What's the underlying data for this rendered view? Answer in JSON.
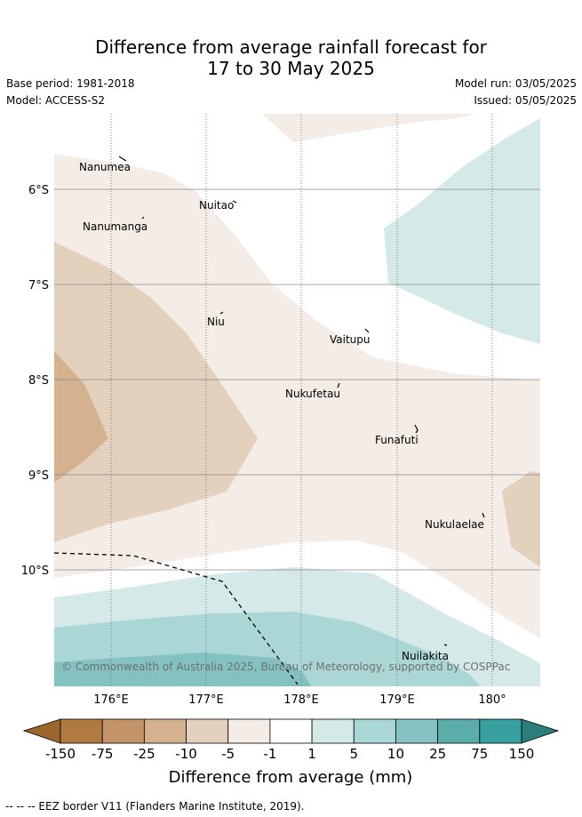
{
  "header": {
    "title_line1": "Difference from average rainfall forecast for",
    "title_line2": "17 to 30 May 2025",
    "base_period": "Base period: 1981-2018",
    "model": "Model: ACCESS-S2",
    "model_run": "Model run: 03/05/2025",
    "issued": "Issued: 05/05/2025"
  },
  "map": {
    "lat_labels": [
      "6°S",
      "7°S",
      "8°S",
      "9°S",
      "10°S"
    ],
    "lon_labels": [
      "176°E",
      "177°E",
      "178°E",
      "179°E",
      "180°"
    ],
    "places": [
      "Nanumea",
      "Nuitao",
      "Nanumanga",
      "Niu",
      "Vaitupu",
      "Nukufetau",
      "Funafuti",
      "Nukulaelae",
      "Nuilakita"
    ],
    "copyright": "© Commonwealth of Australia 2025, Bureau of Meteorology, supported by COSPPac"
  },
  "legend": {
    "title": "Difference from average (mm)",
    "ticks": [
      "-150",
      "-75",
      "-25",
      "-10",
      "-5",
      "-1",
      "1",
      "5",
      "10",
      "25",
      "75",
      "150"
    ],
    "colors": [
      "#b07a41",
      "#c29468",
      "#d4b28f",
      "#e3d0bd",
      "#f4ece6",
      "#ffffff",
      "#d5e9e8",
      "#aad6d6",
      "#84c2c1",
      "#5caeac",
      "#379f9d"
    ],
    "low_extend_color": "#9b662c",
    "high_extend_color": "#2a7f7d"
  },
  "footer": {
    "eez_note": "-- -- -- EEZ border V11 (Flanders Marine Institute, 2019)."
  }
}
